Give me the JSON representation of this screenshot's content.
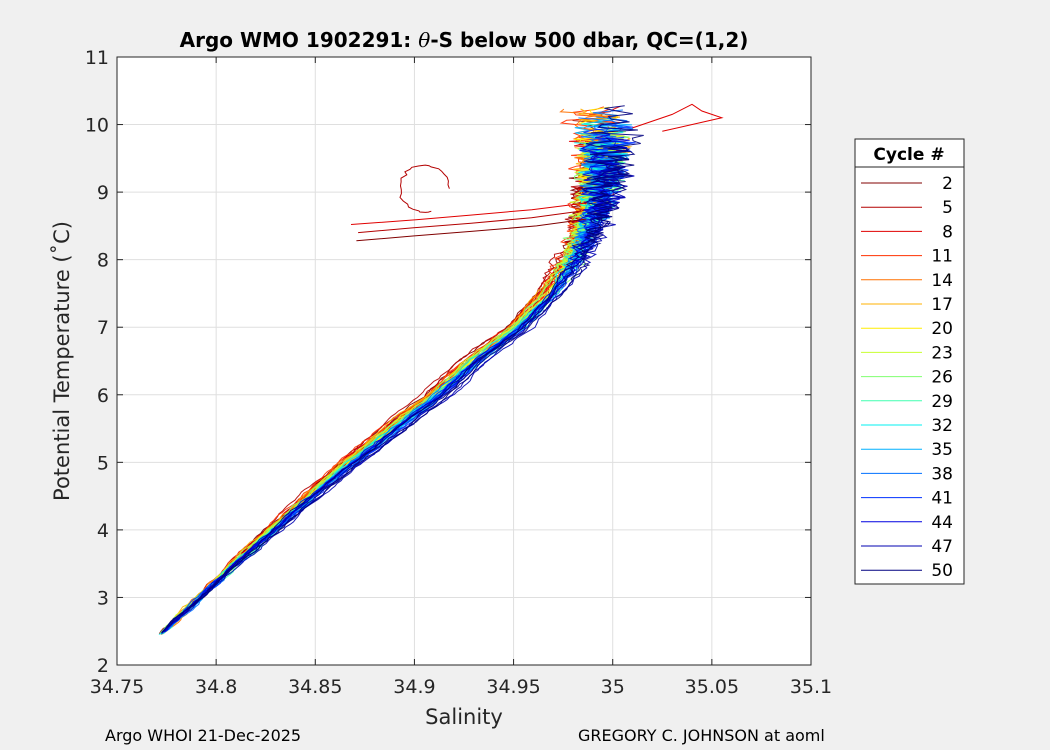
{
  "chart_data": {
    "type": "line",
    "title_prefix": "Argo WMO 1902291: ",
    "title_theta": "θ",
    "title_suffix": "-S below 500 dbar,  QC=(1,2)",
    "xlabel": "Salinity",
    "ylabel": "Potential Temperature (˚C)",
    "xlim": [
      34.75,
      35.1
    ],
    "ylim": [
      2,
      11
    ],
    "xticks": [
      "34.75",
      "34.8",
      "34.85",
      "34.9",
      "34.95",
      "35",
      "35.05",
      "35.1"
    ],
    "yticks": [
      "2",
      "3",
      "4",
      "5",
      "6",
      "7",
      "8",
      "9",
      "10",
      "11"
    ],
    "grid": true,
    "legend": {
      "title": "Cycle #",
      "placement": "right",
      "entries": [
        {
          "label": "2",
          "color": "#800000"
        },
        {
          "label": "5",
          "color": "#b30000"
        },
        {
          "label": "8",
          "color": "#e00000"
        },
        {
          "label": "11",
          "color": "#ff3000"
        },
        {
          "label": "14",
          "color": "#ff7000"
        },
        {
          "label": "17",
          "color": "#ffb000"
        },
        {
          "label": "20",
          "color": "#ffee00"
        },
        {
          "label": "23",
          "color": "#c8ff30"
        },
        {
          "label": "26",
          "color": "#80ff70"
        },
        {
          "label": "29",
          "color": "#40ffb0"
        },
        {
          "label": "32",
          "color": "#00f0f0"
        },
        {
          "label": "35",
          "color": "#00b0ff"
        },
        {
          "label": "38",
          "color": "#0070ff"
        },
        {
          "label": "41",
          "color": "#0030ff"
        },
        {
          "label": "44",
          "color": "#0000e0"
        },
        {
          "label": "47",
          "color": "#0000b0"
        },
        {
          "label": "50",
          "color": "#000080"
        }
      ]
    },
    "series_profile": {
      "theta": [
        2.45,
        3.0,
        3.5,
        4.0,
        4.5,
        5.0,
        5.5,
        6.0,
        6.5,
        7.0,
        7.5,
        8.0,
        8.5,
        9.0,
        9.5,
        9.8
      ],
      "salinity": [
        34.772,
        34.793,
        34.811,
        34.831,
        34.851,
        34.872,
        34.894,
        34.916,
        34.935,
        34.957,
        34.973,
        34.985,
        34.993,
        34.998,
        35.0,
        35.0
      ]
    },
    "anomaly_branch": {
      "theta": [
        8.28,
        8.35,
        8.42,
        8.5,
        8.6
      ],
      "salinity": [
        34.87,
        34.9,
        34.93,
        34.96,
        34.985
      ]
    }
  },
  "footer": {
    "left": "Argo WHOI 21-Dec-2025",
    "right": "GREGORY C. JOHNSON at aoml"
  }
}
